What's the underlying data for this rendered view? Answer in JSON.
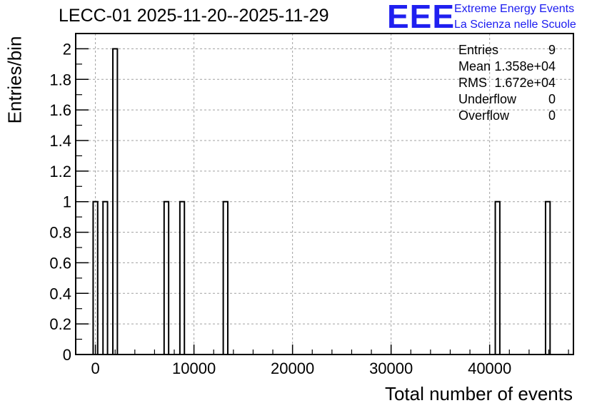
{
  "header": {
    "title": "LECC-01 2025-11-20--2025-11-29",
    "logo_text": "EEE",
    "logo_line1": "Extreme Energy Events",
    "logo_line2": "La Scienza nelle Scuole"
  },
  "stats": [
    {
      "label": "Entries",
      "value": "9"
    },
    {
      "label": "Mean",
      "value": "1.358e+04"
    },
    {
      "label": "RMS",
      "value": "1.672e+04"
    },
    {
      "label": "Underflow",
      "value": "0"
    },
    {
      "label": "Overflow",
      "value": "0"
    }
  ],
  "colors": {
    "bar_stroke": "#000000",
    "grid": "#a0a0a0",
    "logo": "#2020f0"
  },
  "chart_data": {
    "type": "bar",
    "title": "LECC-01 2025-11-20--2025-11-29",
    "xlabel": "Total number of events",
    "ylabel": "Entries/bin",
    "xlim": [
      -2000,
      48500
    ],
    "ylim": [
      0,
      2.1
    ],
    "grid": true,
    "bin_width": 460,
    "x_ticks": [
      0,
      10000,
      20000,
      30000,
      40000
    ],
    "x_tick_labels": [
      "0",
      "10000",
      "20000",
      "30000",
      "40000"
    ],
    "y_ticks": [
      0,
      0.2,
      0.4,
      0.6,
      0.8,
      1,
      1.2,
      1.4,
      1.6,
      1.8,
      2
    ],
    "y_tick_labels": [
      "0",
      "0.2",
      "0.4",
      "0.6",
      "0.8",
      "1",
      "1.2",
      "1.4",
      "1.6",
      "1.8",
      "2"
    ],
    "bins": [
      {
        "x": 0,
        "value": 1
      },
      {
        "x": 1000,
        "value": 1
      },
      {
        "x": 2000,
        "value": 2
      },
      {
        "x": 7200,
        "value": 1
      },
      {
        "x": 8800,
        "value": 1
      },
      {
        "x": 13200,
        "value": 1
      },
      {
        "x": 40800,
        "value": 1
      },
      {
        "x": 45900,
        "value": 1
      }
    ]
  }
}
